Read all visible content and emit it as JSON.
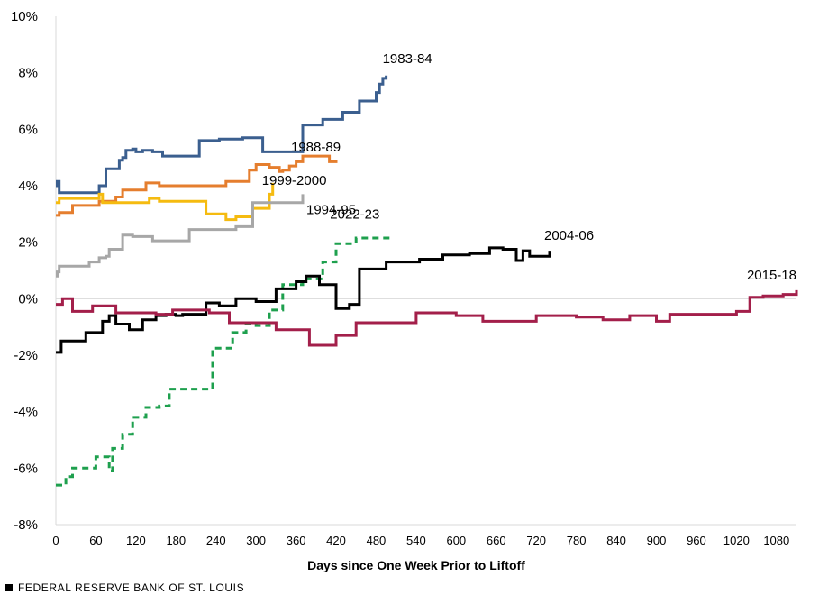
{
  "chart_data": {
    "type": "line",
    "xlabel": "Days since One Week Prior to Liftoff",
    "ylabel": "",
    "xlim": [
      0,
      1110
    ],
    "ylim": [
      -8,
      10
    ],
    "x_ticks": [
      0,
      60,
      120,
      180,
      240,
      300,
      360,
      420,
      480,
      540,
      600,
      660,
      720,
      780,
      840,
      900,
      960,
      1020,
      1080
    ],
    "y_ticks": [
      -8,
      -6,
      -4,
      -2,
      0,
      2,
      4,
      6,
      8,
      10
    ],
    "y_tick_labels": [
      "-8%",
      "-6%",
      "-4%",
      "-2%",
      "0%",
      "2%",
      "4%",
      "6%",
      "8%",
      "10%"
    ],
    "grid": false,
    "zero_line": true,
    "series": [
      {
        "name": "1983-84",
        "color": "#3B5F8F",
        "dash": false,
        "step": true,
        "x": [
          0,
          2,
          5,
          65,
          75,
          95,
          100,
          105,
          115,
          120,
          130,
          145,
          160,
          170,
          215,
          245,
          280,
          310,
          370,
          400,
          430,
          455,
          480,
          485,
          490,
          495
        ],
        "y": [
          4.0,
          4.15,
          3.75,
          4.0,
          4.6,
          4.9,
          5.0,
          5.25,
          5.3,
          5.2,
          5.25,
          5.2,
          5.05,
          5.05,
          5.6,
          5.65,
          5.7,
          5.2,
          6.15,
          6.35,
          6.6,
          7.0,
          7.3,
          7.6,
          7.8,
          7.9
        ]
      },
      {
        "name": "1988-89",
        "color": "#E57E2E",
        "dash": false,
        "step": true,
        "x": [
          0,
          5,
          25,
          65,
          90,
          100,
          135,
          155,
          235,
          255,
          290,
          300,
          320,
          335,
          340,
          350,
          360,
          370,
          410,
          420
        ],
        "y": [
          2.95,
          3.05,
          3.3,
          3.45,
          3.6,
          3.85,
          4.1,
          4.0,
          4.0,
          4.15,
          4.55,
          4.75,
          4.65,
          4.5,
          4.55,
          4.7,
          4.85,
          5.05,
          4.85,
          4.9
        ]
      },
      {
        "name": "1999-2000",
        "color": "#F5BB10",
        "dash": false,
        "step": true,
        "x": [
          0,
          5,
          65,
          70,
          115,
          140,
          155,
          225,
          255,
          270,
          295,
          320,
          325
        ],
        "y": [
          3.4,
          3.55,
          3.7,
          3.4,
          3.4,
          3.55,
          3.45,
          3.0,
          2.8,
          2.9,
          3.2,
          3.7,
          4.1
        ]
      },
      {
        "name": "1994-95",
        "color": "#A7A7A7",
        "dash": false,
        "step": true,
        "x": [
          0,
          2,
          5,
          30,
          50,
          65,
          75,
          80,
          100,
          115,
          145,
          175,
          200,
          270,
          295,
          370
        ],
        "y": [
          0.8,
          0.95,
          1.15,
          1.15,
          1.3,
          1.45,
          1.5,
          1.75,
          2.25,
          2.2,
          2.05,
          2.05,
          2.45,
          2.55,
          3.4,
          3.7
        ]
      },
      {
        "name": "2022-23",
        "color": "#1EA04E",
        "dash": true,
        "step": true,
        "x": [
          0,
          15,
          25,
          60,
          80,
          85,
          100,
          115,
          135,
          155,
          170,
          195,
          235,
          265,
          285,
          300,
          320,
          340,
          370,
          400,
          420,
          450,
          500
        ],
        "y": [
          -6.6,
          -6.3,
          -6.0,
          -5.6,
          -6.1,
          -5.3,
          -4.8,
          -4.2,
          -3.85,
          -3.8,
          -3.2,
          -3.2,
          -1.75,
          -1.2,
          -0.9,
          -0.95,
          -0.4,
          0.5,
          0.7,
          1.3,
          1.95,
          2.15,
          2.2
        ]
      },
      {
        "name": "2004-06",
        "color": "#000000",
        "dash": false,
        "step": true,
        "x": [
          0,
          8,
          45,
          70,
          80,
          90,
          110,
          130,
          150,
          165,
          180,
          190,
          225,
          245,
          270,
          300,
          330,
          360,
          375,
          395,
          420,
          440,
          455,
          495,
          545,
          580,
          600,
          620,
          650,
          670,
          690,
          700,
          710,
          740
        ],
        "y": [
          -1.9,
          -1.5,
          -1.2,
          -0.8,
          -0.6,
          -0.9,
          -1.1,
          -0.75,
          -0.6,
          -0.55,
          -0.6,
          -0.55,
          -0.15,
          -0.25,
          0.0,
          -0.1,
          0.35,
          0.6,
          0.8,
          0.5,
          -0.35,
          -0.2,
          1.05,
          1.3,
          1.4,
          1.55,
          1.55,
          1.6,
          1.8,
          1.75,
          1.35,
          1.7,
          1.5,
          1.7
        ]
      },
      {
        "name": "2015-18",
        "color": "#A31F4A",
        "dash": false,
        "step": true,
        "x": [
          0,
          10,
          25,
          55,
          90,
          150,
          175,
          230,
          260,
          330,
          380,
          420,
          450,
          540,
          600,
          640,
          720,
          780,
          820,
          860,
          900,
          920,
          1020,
          1040,
          1060,
          1090,
          1110
        ],
        "y": [
          -0.2,
          0.0,
          -0.45,
          -0.25,
          -0.5,
          -0.55,
          -0.4,
          -0.5,
          -0.85,
          -1.1,
          -1.65,
          -1.3,
          -0.85,
          -0.5,
          -0.6,
          -0.8,
          -0.6,
          -0.65,
          -0.75,
          -0.6,
          -0.8,
          -0.55,
          -0.45,
          0.05,
          0.1,
          0.15,
          0.3
        ]
      }
    ]
  },
  "footer": {
    "text": "FEDERAL RESERVE BANK OF ST. LOUIS"
  }
}
